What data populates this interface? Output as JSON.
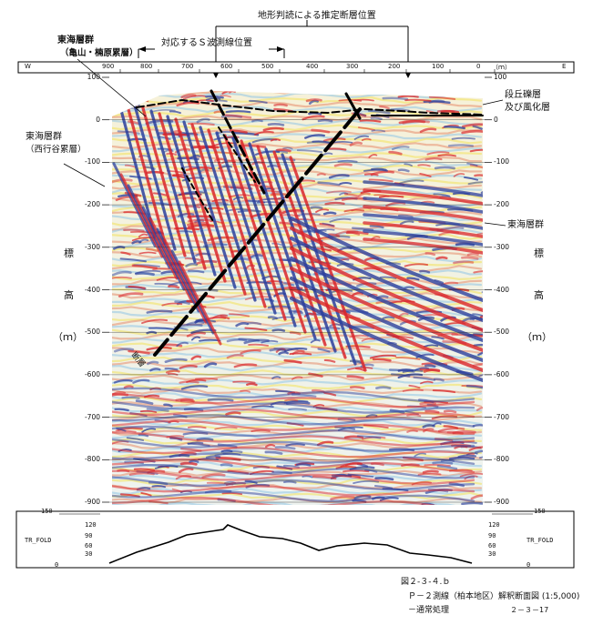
{
  "labels": {
    "topographic_fault": "地形判読による推定断層位置",
    "s_wave_line": "対応するＳ波測線位置",
    "tokai_group_1": "東海層群",
    "tokai_group_1_sub": "（亀山・楠原累層）",
    "tokai_group_2": "東海層群",
    "tokai_group_2_sub": "（西行谷累層）",
    "terrace": "段丘礫層",
    "weathered": "及び風化層",
    "tokai_group_3": "東海層群",
    "fault": "断層",
    "elev_1": "標",
    "elev_2": "高",
    "elev_3": "（ｍ）"
  },
  "distance_axis": {
    "west": "W",
    "east": "E",
    "unit": "（ｍ）",
    "ticks": [
      "900",
      "800",
      "700",
      "600",
      "500",
      "400",
      "300",
      "200",
      "100",
      "0"
    ]
  },
  "elevation_axis": {
    "ticks": [
      "100",
      "0",
      "-100",
      "-200",
      "-300",
      "-400",
      "-500",
      "-600",
      "-700",
      "-800",
      "-900"
    ]
  },
  "fold_panel": {
    "name": "TR_FOLD",
    "left_ticks": [
      "150",
      "120",
      "90",
      "60",
      "30",
      "0"
    ],
    "right_ticks": [
      "150",
      "120",
      "90",
      "60",
      "30",
      "0"
    ]
  },
  "caption": {
    "figure": "図２-３-４.ｂ",
    "title": "Ｐ－２測線（柏本地区）解釈断面図 (1:5,000)",
    "subtitle": "－通常処理",
    "page": "２－３－17"
  },
  "colors": {
    "red": "#d9262a",
    "blue": "#2c3f9c",
    "lightblue": "#8fc4e6",
    "yellow": "#f3e15a"
  }
}
